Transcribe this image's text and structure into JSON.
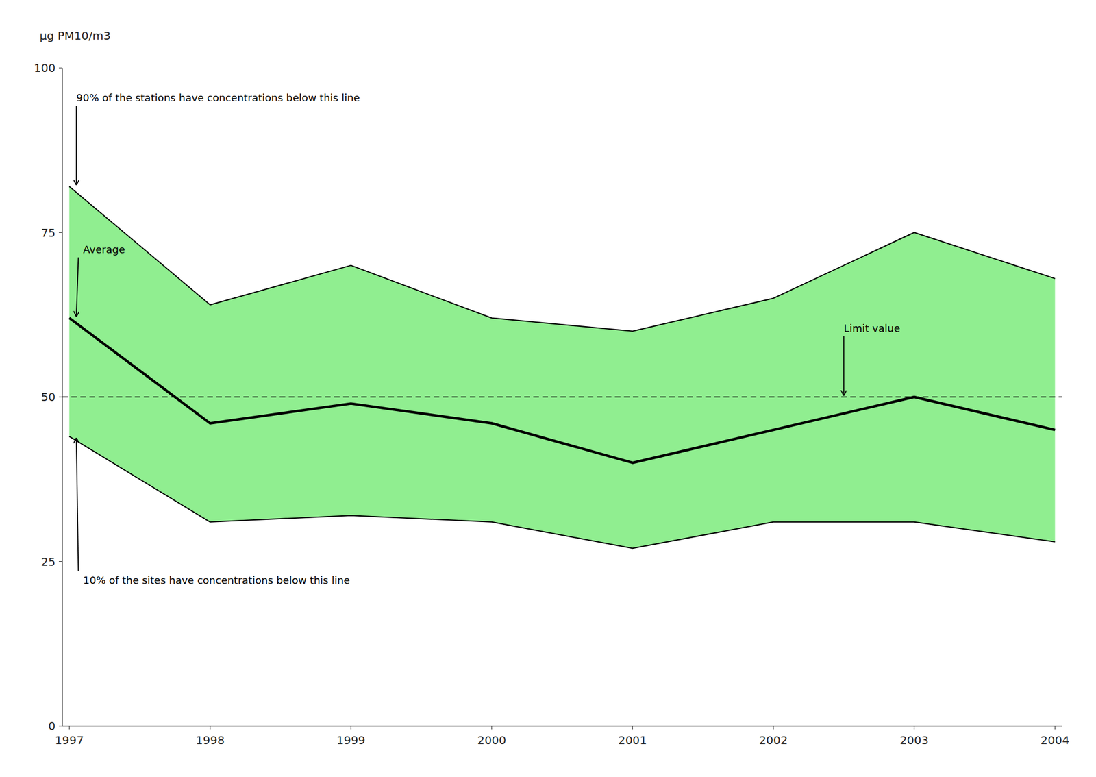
{
  "chart_data": {
    "type": "line",
    "ylabel": "μg PM10/m3",
    "x": [
      1997,
      1998,
      1999,
      2000,
      2001,
      2002,
      2003,
      2004
    ],
    "series": [
      {
        "type": "area",
        "color": "#90EE90",
        "values": [
          82,
          64,
          70,
          62,
          60,
          65,
          75,
          68
        ],
        "low": [
          44,
          31,
          32,
          31,
          27,
          31,
          31,
          28
        ]
      },
      {
        "type": "line",
        "color": "#000000",
        "line_style": "solid",
        "values": [
          82,
          64,
          70,
          62,
          60,
          65,
          75,
          68
        ]
      },
      {
        "type": "line",
        "color": "#000000",
        "line_style": "solid",
        "values": [
          44,
          31,
          32,
          31,
          27,
          31,
          31,
          28
        ]
      },
      {
        "type": "line",
        "color": "#000000",
        "line_style": "solid",
        "values": [
          62,
          46,
          49,
          46,
          40,
          45,
          50,
          45
        ]
      }
    ],
    "reference_line": {
      "value": 50,
      "color": "#000000",
      "line_style": "dashed"
    },
    "xlim": [
      1996.95,
      2004.05
    ],
    "xticks": [
      1997,
      1998,
      1999,
      2000,
      2001,
      2002,
      2003,
      2004
    ],
    "ylim": [
      0,
      100
    ],
    "yticks": [
      0,
      25,
      50,
      75,
      100
    ],
    "grid": false,
    "annotations": [
      {
        "text": "90% of the stations have concentrations below this line",
        "x": 1997.05,
        "y": 82
      },
      {
        "text": "Average",
        "x": 1997.05,
        "y": 62
      },
      {
        "text": "10% of the sites have concentrations below this line",
        "x": 1997.05,
        "y": 44
      },
      {
        "text": "Limit value",
        "x": 2002.5,
        "y": 50
      }
    ]
  }
}
